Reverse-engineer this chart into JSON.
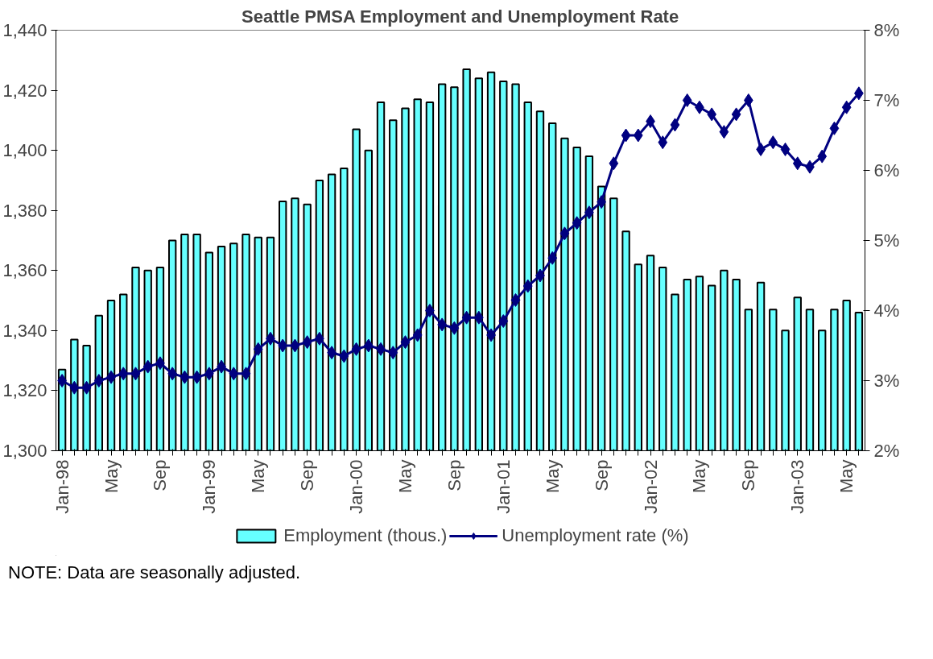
{
  "chart_data": {
    "type": "bar",
    "title": "Seattle PMSA Employment and Unemployment Rate",
    "categories": [
      "Jan-98",
      null,
      null,
      null,
      "May",
      null,
      null,
      null,
      "Sep",
      null,
      null,
      null,
      "Jan-99",
      null,
      null,
      null,
      "May",
      null,
      null,
      null,
      "Sep",
      null,
      null,
      null,
      "Jan-00",
      null,
      null,
      null,
      "May",
      null,
      null,
      null,
      "Sep",
      null,
      null,
      null,
      "Jan-01",
      null,
      null,
      null,
      "May",
      null,
      null,
      null,
      "Sep",
      null,
      null,
      null,
      "Jan-02",
      null,
      null,
      null,
      "May",
      null,
      null,
      null,
      "Sep",
      null,
      null,
      null,
      "Jan-03",
      null,
      null,
      null,
      "May",
      null
    ],
    "series": [
      {
        "name": "Employment (thous.)",
        "color": "#66ffff",
        "values": [
          1327,
          1337,
          1335,
          1345,
          1350,
          1352,
          1361,
          1360,
          1361,
          1370,
          1372,
          1372,
          1366,
          1368,
          1369,
          1372,
          1371,
          1371,
          1383,
          1384,
          1382,
          1390,
          1392,
          1394,
          1407,
          1400,
          1416,
          1410,
          1414,
          1417,
          1416,
          1422,
          1421,
          1427,
          1424,
          1426,
          1423,
          1422,
          1416,
          1413,
          1409,
          1404,
          1401,
          1398,
          1388,
          1384,
          1373,
          1362,
          1365,
          1361,
          1352,
          1357,
          1358,
          1355,
          1360,
          1357,
          1347,
          1356,
          1347,
          1340,
          1351,
          1347,
          1340,
          1347,
          1350,
          1346
        ]
      },
      {
        "name": "Unemployment rate (%)",
        "type": "line",
        "axis": "y2",
        "color": "#000080",
        "marker": "diamond",
        "values": [
          3.0,
          2.9,
          2.9,
          3.0,
          3.05,
          3.1,
          3.1,
          3.2,
          3.25,
          3.1,
          3.05,
          3.05,
          3.1,
          3.2,
          3.1,
          3.1,
          3.45,
          3.6,
          3.5,
          3.5,
          3.55,
          3.6,
          3.4,
          3.35,
          3.45,
          3.5,
          3.45,
          3.4,
          3.55,
          3.65,
          4.0,
          3.8,
          3.75,
          3.9,
          3.9,
          3.65,
          3.85,
          4.15,
          4.35,
          4.5,
          4.75,
          5.1,
          5.25,
          5.4,
          5.55,
          6.1,
          6.5,
          6.5,
          6.7,
          6.4,
          6.65,
          7.0,
          6.9,
          6.8,
          6.55,
          6.8,
          7.0,
          6.3,
          6.4,
          6.3,
          6.1,
          6.05,
          6.2,
          6.6,
          6.9,
          7.1
        ]
      }
    ],
    "ylim": [
      1300,
      1440
    ],
    "yticks": [
      {
        "value": 1300,
        "label": "1,300"
      },
      {
        "value": 1320,
        "label": "1,320"
      },
      {
        "value": 1340,
        "label": "1,340"
      },
      {
        "value": 1360,
        "label": "1,360"
      },
      {
        "value": 1380,
        "label": "1,380"
      },
      {
        "value": 1400,
        "label": "1,400"
      },
      {
        "value": 1420,
        "label": "1,420"
      },
      {
        "value": 1440,
        "label": "1,440"
      }
    ],
    "y2lim": [
      2,
      8
    ],
    "y2ticks": [
      {
        "value": 2,
        "label": "2%"
      },
      {
        "value": 3,
        "label": "3%"
      },
      {
        "value": 4,
        "label": "4%"
      },
      {
        "value": 5,
        "label": "5%"
      },
      {
        "value": 6,
        "label": "6%"
      },
      {
        "value": 7,
        "label": "7%"
      },
      {
        "value": 8,
        "label": "8%"
      }
    ],
    "legend": "bottom",
    "grid": false,
    "annotations": [
      "NOTE: Data are seasonally adjusted."
    ]
  }
}
